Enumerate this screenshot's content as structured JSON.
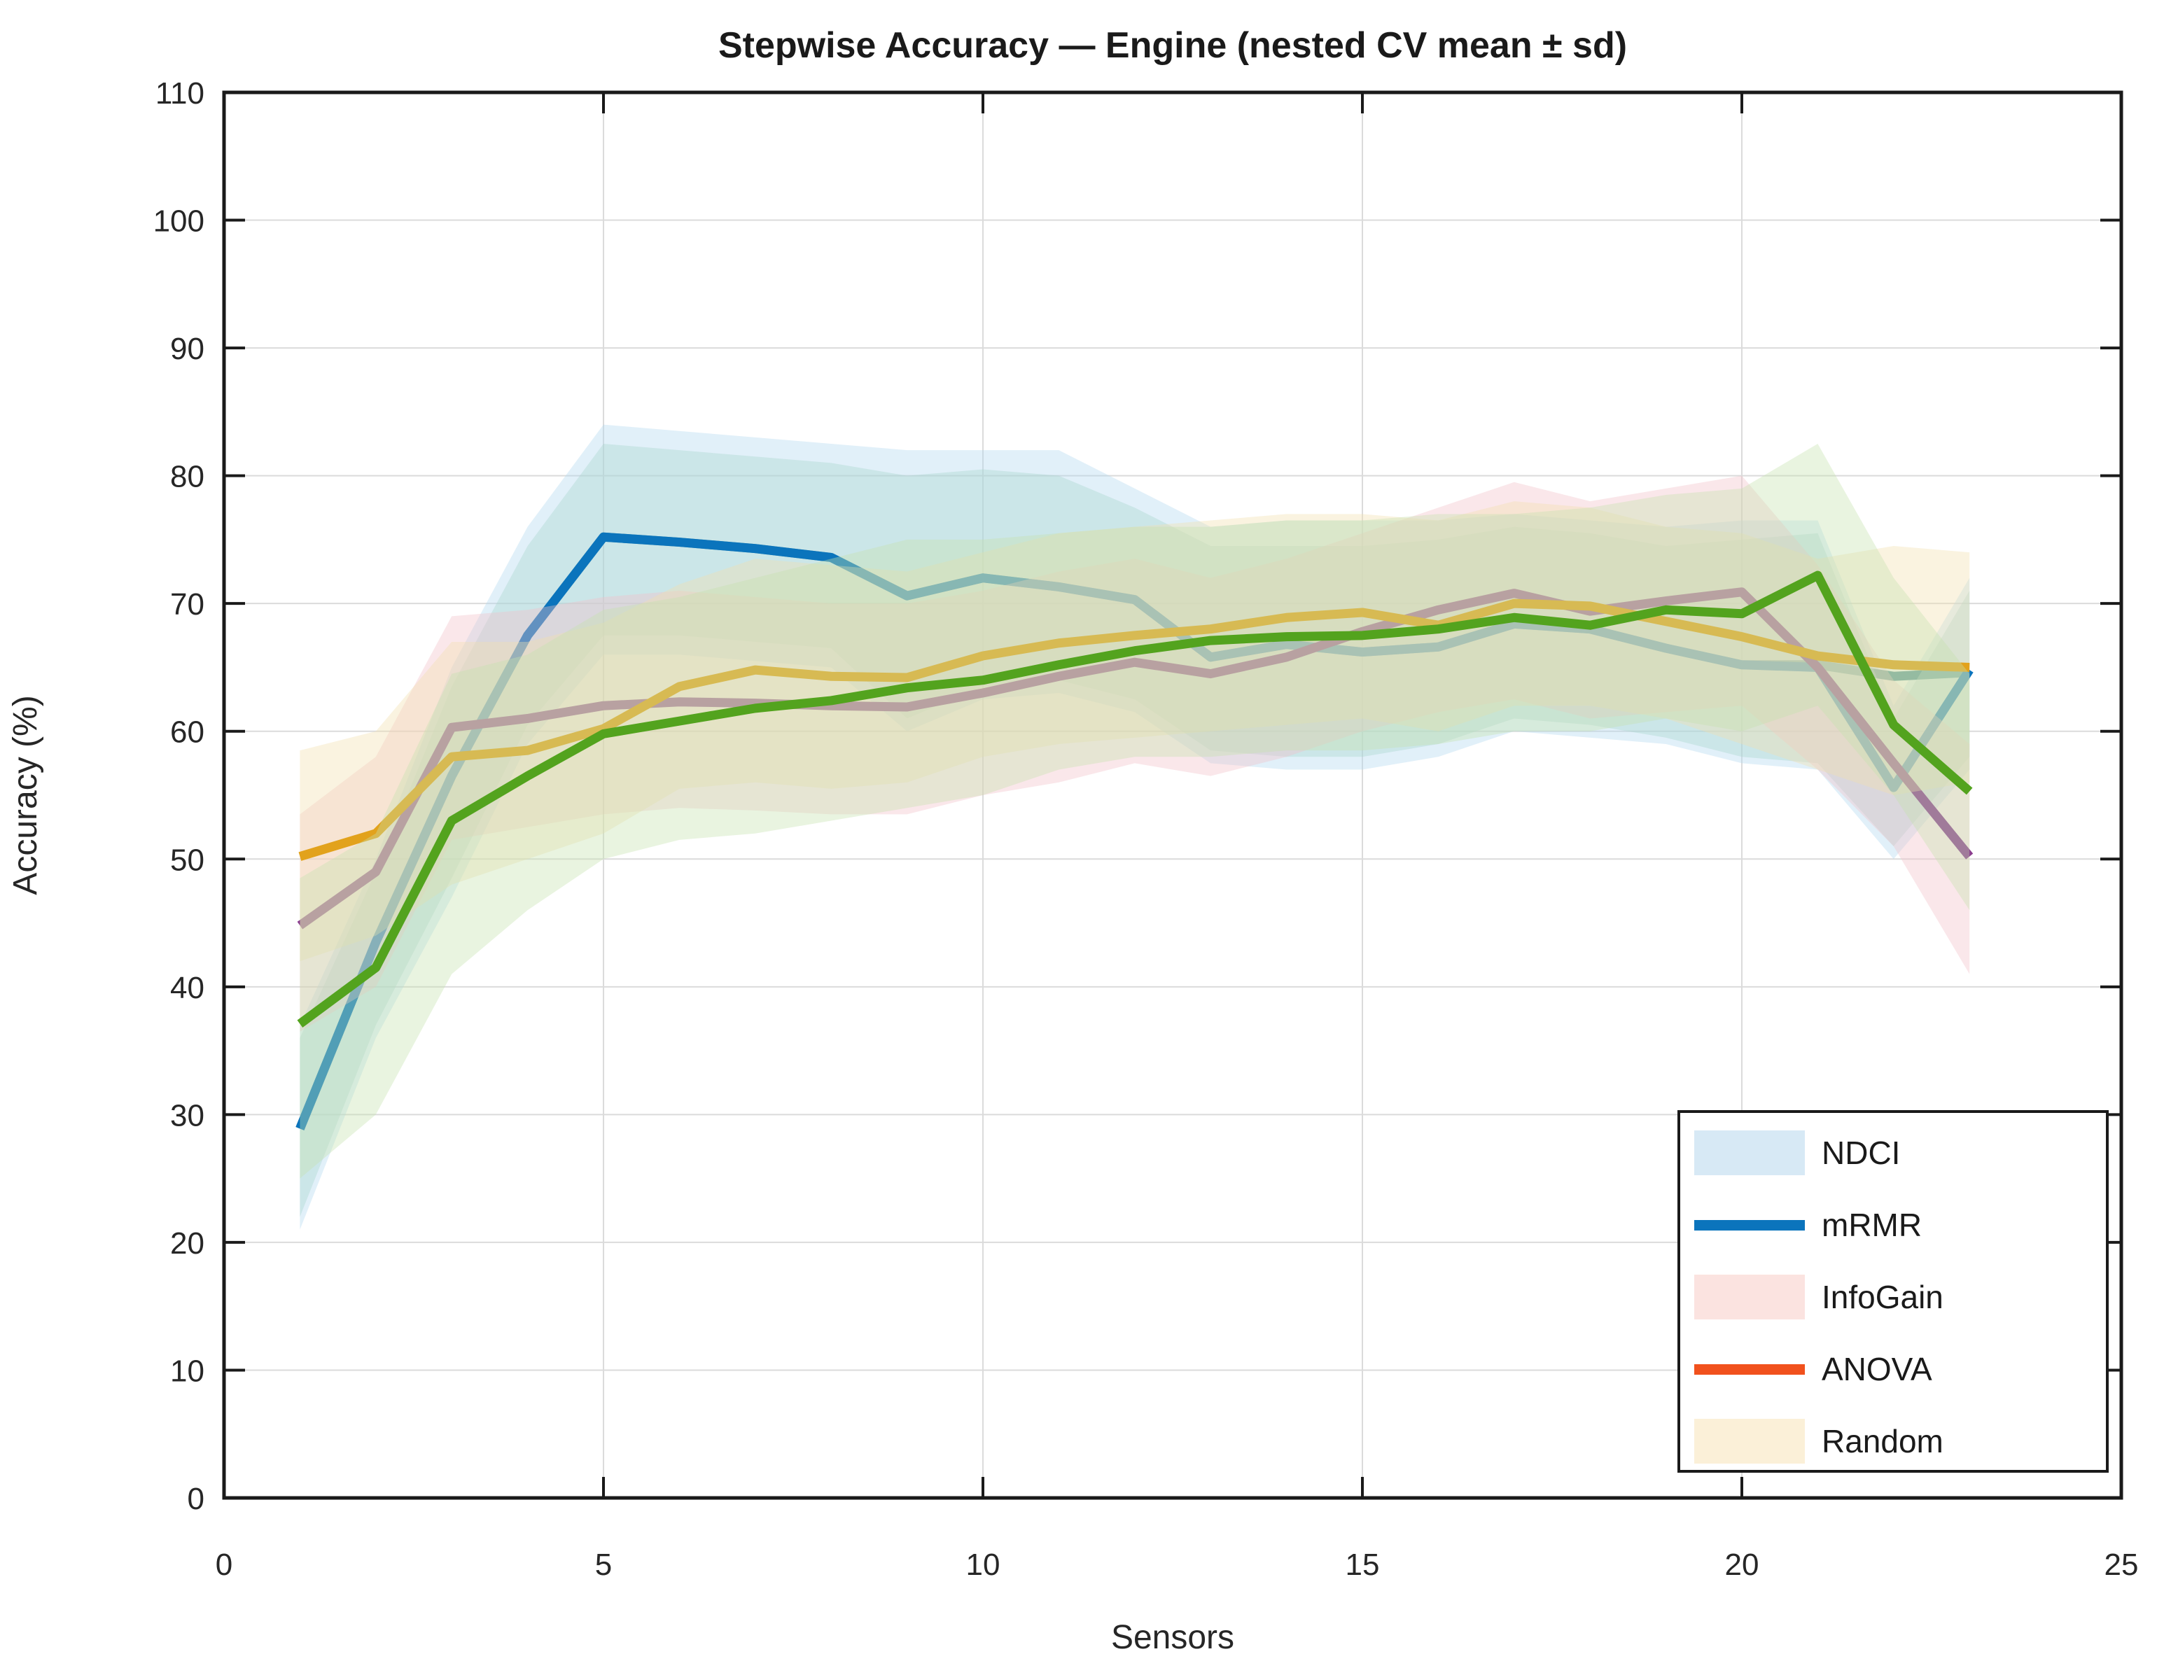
{
  "chart_data": {
    "type": "line",
    "title": "Stepwise Accuracy — Engine (nested CV mean ± sd)",
    "xlabel": "Sensors",
    "ylabel": "Accuracy (%)",
    "xlim": [
      0,
      25
    ],
    "ylim": [
      0,
      110
    ],
    "xticks": [
      0,
      5,
      10,
      15,
      20,
      25
    ],
    "yticks": [
      0,
      10,
      20,
      30,
      40,
      50,
      60,
      70,
      80,
      90,
      100,
      110
    ],
    "grid": true,
    "legend_position": "lower right",
    "x": [
      1,
      2,
      3,
      4,
      5,
      6,
      7,
      8,
      9,
      10,
      11,
      12,
      13,
      14,
      15,
      16,
      17,
      18,
      19,
      20,
      21,
      22,
      23
    ],
    "series": [
      {
        "name": "NDCI",
        "legend_swatch": "band",
        "legend_color": "#D7E9F5",
        "band_color": "#AFD7EE",
        "line_color": "#2E7F8E",
        "mean": [
          28.9,
          43.5,
          56.5,
          67.5,
          75.2,
          74.8,
          74.3,
          73.6,
          70.6,
          72.0,
          71.3,
          70.3,
          65.8,
          66.8,
          66.2,
          66.6,
          68.4,
          68.0,
          66.5,
          65.2,
          65.2,
          64.3,
          64.6
        ],
        "upper": [
          37,
          50,
          65,
          76,
          84,
          83.5,
          83,
          82.5,
          82,
          82,
          82,
          79,
          76,
          76.5,
          76.5,
          76.5,
          77,
          76.5,
          76,
          76.5,
          76.5,
          62,
          72
        ],
        "lower": [
          21,
          36,
          47,
          59,
          66,
          66,
          65.5,
          65,
          60,
          62.5,
          63,
          61.5,
          57.5,
          57,
          57,
          58,
          60,
          59.5,
          59,
          57.5,
          57,
          50,
          57
        ]
      },
      {
        "name": "mRMR",
        "legend_swatch": "line",
        "legend_color": "#0B74BC",
        "band_color": "#A8D5CE",
        "line_color": "#0B74BC",
        "mean": [
          28.9,
          43.5,
          56.5,
          67.5,
          75.2,
          74.8,
          74.3,
          73.6,
          70.6,
          72.0,
          71.3,
          70.3,
          65.8,
          66.8,
          66.2,
          66.6,
          68.4,
          68.0,
          66.5,
          65.2,
          65.0,
          55.6,
          64.8
        ],
        "upper": [
          36,
          49,
          63.5,
          74.5,
          82.5,
          82,
          81.5,
          81,
          80,
          80.5,
          80,
          77.5,
          74.5,
          74.5,
          74.5,
          75,
          76,
          75.5,
          74.5,
          75,
          75.5,
          61,
          71
        ],
        "lower": [
          22,
          37,
          48.5,
          60.5,
          67.5,
          67.5,
          67,
          66.5,
          61,
          63.5,
          64,
          62.5,
          58.5,
          58,
          58,
          59,
          61,
          60.5,
          59.5,
          58,
          57.5,
          51,
          58
        ]
      },
      {
        "name": "InfoGain",
        "legend_swatch": "band",
        "legend_color": "#FBE3E0",
        "band_color": "#F2BFC7",
        "line_color": "#8A3C8E",
        "mean": [
          44.8,
          49.0,
          60.3,
          61.0,
          62.0,
          62.3,
          62.2,
          62.0,
          61.9,
          63.0,
          64.3,
          65.4,
          64.5,
          65.8,
          67.8,
          69.5,
          70.8,
          69.4,
          70.2,
          70.9,
          65.0,
          57.5,
          50.2
        ],
        "upper": [
          53.5,
          58,
          69,
          69.5,
          70.5,
          71,
          70.5,
          70,
          70,
          71,
          72.5,
          73.5,
          72,
          73.5,
          75.5,
          77.5,
          79.5,
          78,
          79,
          80,
          73,
          64,
          59
        ],
        "lower": [
          36.5,
          40,
          51.5,
          52.5,
          53.5,
          54,
          53.8,
          53.5,
          53.5,
          55,
          56,
          57.5,
          56.5,
          58,
          60,
          61.5,
          62.5,
          61,
          61.5,
          62,
          57,
          51,
          41
        ]
      },
      {
        "name": "ANOVA",
        "legend_swatch": "line",
        "legend_color": "#F1511D",
        "band_color": "#F3DFAE",
        "line_color": "#E2A21C",
        "mean": [
          50.2,
          52.0,
          58.0,
          58.5,
          60.2,
          63.5,
          64.8,
          64.3,
          64.2,
          65.9,
          66.9,
          67.5,
          68.0,
          68.9,
          69.3,
          68.3,
          70.0,
          69.8,
          68.6,
          67.4,
          65.9,
          65.2,
          65.0
        ],
        "upper": [
          58.5,
          60,
          67,
          67,
          68.5,
          71.5,
          73.5,
          73,
          72.5,
          74,
          75.5,
          76,
          76.5,
          77,
          77,
          76.5,
          78,
          77.5,
          76,
          75.5,
          73.5,
          74.5,
          74
        ],
        "lower": [
          42,
          44,
          48,
          50,
          52,
          55.5,
          56,
          55.5,
          56,
          58,
          59,
          59.5,
          60,
          60.5,
          61,
          60,
          62,
          62,
          61,
          59,
          57,
          55,
          56
        ]
      },
      {
        "name": "Random",
        "legend_swatch": "band",
        "legend_color": "#FBF0D8",
        "band_color": "#C6E1AE",
        "line_color": "#53A31E",
        "mean": [
          37.1,
          41.5,
          53.0,
          56.5,
          59.8,
          60.8,
          61.8,
          62.4,
          63.4,
          64.0,
          65.2,
          66.3,
          67.1,
          67.4,
          67.5,
          68.0,
          68.9,
          68.3,
          69.5,
          69.2,
          72.2,
          60.5,
          55.3
        ],
        "upper": [
          48.5,
          52,
          64.5,
          66,
          69.5,
          70.5,
          72,
          73.5,
          75,
          75,
          75.5,
          76,
          76,
          76.5,
          76.5,
          77,
          77,
          77.5,
          78.5,
          79,
          82.5,
          72,
          64.5
        ],
        "lower": [
          25,
          30,
          41,
          46,
          50,
          51.5,
          52,
          53,
          54,
          55,
          57,
          58,
          58,
          58.5,
          58.5,
          59,
          60,
          60,
          61,
          60,
          62,
          55,
          46
        ]
      }
    ],
    "style": {
      "grid_color": "#DBDBDB",
      "axis_color": "#1A1A1A",
      "tick_label_color": "#262626",
      "band_opacity": 0.38,
      "line_width": 13
    }
  }
}
